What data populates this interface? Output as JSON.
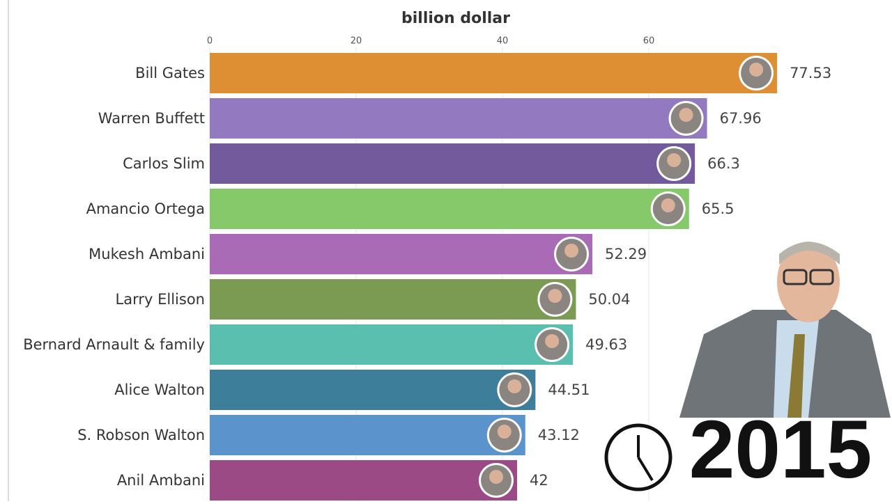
{
  "chart_data": {
    "type": "bar",
    "orientation": "horizontal",
    "title": "billion dollar",
    "categories": [
      "Bill Gates",
      "Warren Buffett",
      "Carlos Slim",
      "Amancio Ortega",
      "Mukesh Ambani",
      "Larry Ellison",
      "Bernard Arnault & family",
      "Alice Walton",
      "S. Robson Walton",
      "Anil Ambani"
    ],
    "values": [
      77.53,
      67.96,
      66.3,
      65.5,
      52.29,
      50.04,
      49.63,
      44.51,
      43.12,
      42
    ],
    "colors": [
      "#de8f33",
      "#9279c0",
      "#735a9c",
      "#86c96a",
      "#a96bb5",
      "#7b9a52",
      "#5bbfb0",
      "#3d7f9a",
      "#5b93cc",
      "#9b4a86"
    ],
    "xlim": [
      0,
      80
    ],
    "xticks": [
      0,
      20,
      40,
      60
    ],
    "grid": true,
    "year": "2015"
  }
}
